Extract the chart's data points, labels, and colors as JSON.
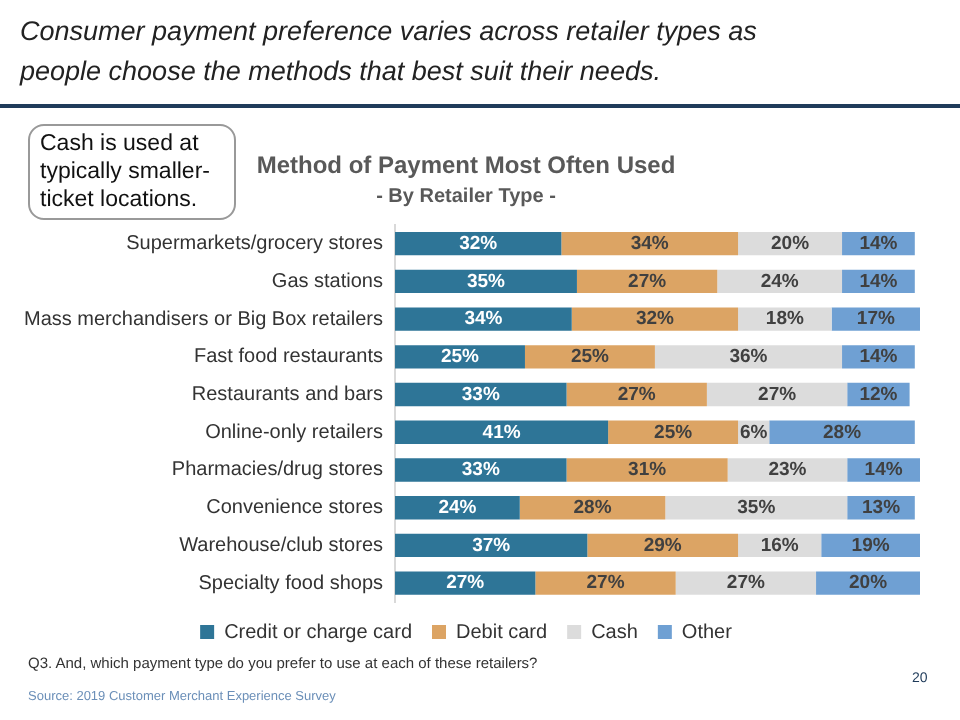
{
  "chart_data": {
    "type": "bar",
    "orientation": "horizontal",
    "stacked": true,
    "title": "Method of Payment Most Often Used",
    "subtitle": "- By Retailer Type -",
    "categories": [
      "Supermarkets/grocery stores",
      "Gas stations",
      "Mass merchandisers or Big Box retailers",
      "Fast food restaurants",
      "Restaurants and bars",
      "Online-only retailers",
      "Pharmacies/drug stores",
      "Convenience stores",
      "Warehouse/club stores",
      "Specialty food shops"
    ],
    "series": [
      {
        "name": "Credit or charge card",
        "color": "#2e7597",
        "values": [
          32,
          35,
          34,
          25,
          33,
          41,
          33,
          24,
          37,
          27
        ],
        "value_labels": [
          "32%",
          "35%",
          "34%",
          "25%",
          "33%",
          "41%",
          "33%",
          "24%",
          "37%",
          "27%"
        ]
      },
      {
        "name": "Debit card",
        "color": "#dca464",
        "values": [
          34,
          27,
          32,
          25,
          27,
          25,
          31,
          28,
          29,
          27
        ],
        "value_labels": [
          "34%",
          "27%",
          "32%",
          "25%",
          "27%",
          "25%",
          "31%",
          "28%",
          "29%",
          "27%"
        ]
      },
      {
        "name": "Cash",
        "color": "#dcdcdc",
        "values": [
          20,
          24,
          18,
          36,
          27,
          6,
          23,
          35,
          16,
          27
        ],
        "value_labels": [
          "20%",
          "24%",
          "18%",
          "36%",
          "27%",
          "6%",
          "23%",
          "35%",
          "16%",
          "27%"
        ]
      },
      {
        "name": "Other",
        "color": "#6fa0d3",
        "values": [
          14,
          14,
          17,
          14,
          12,
          28,
          14,
          13,
          19,
          20
        ],
        "value_labels": [
          "14%",
          "14%",
          "17%",
          "14%",
          "12%",
          "28%",
          "14%",
          "13%",
          "19%",
          "20%"
        ]
      }
    ],
    "xlim": [
      0,
      101
    ],
    "tick_labels": "y",
    "legend": "bottom",
    "annotations": [
      "Consumer payment preference varies across retailer types as people choose the methods that best suit their needs.",
      "Cash is used at typically smaller-ticket locations.",
      "Q3. And, which payment type do you prefer to use at each of these retailers?",
      "Source: 2019 Customer Merchant Experience Survey",
      "20"
    ]
  }
}
